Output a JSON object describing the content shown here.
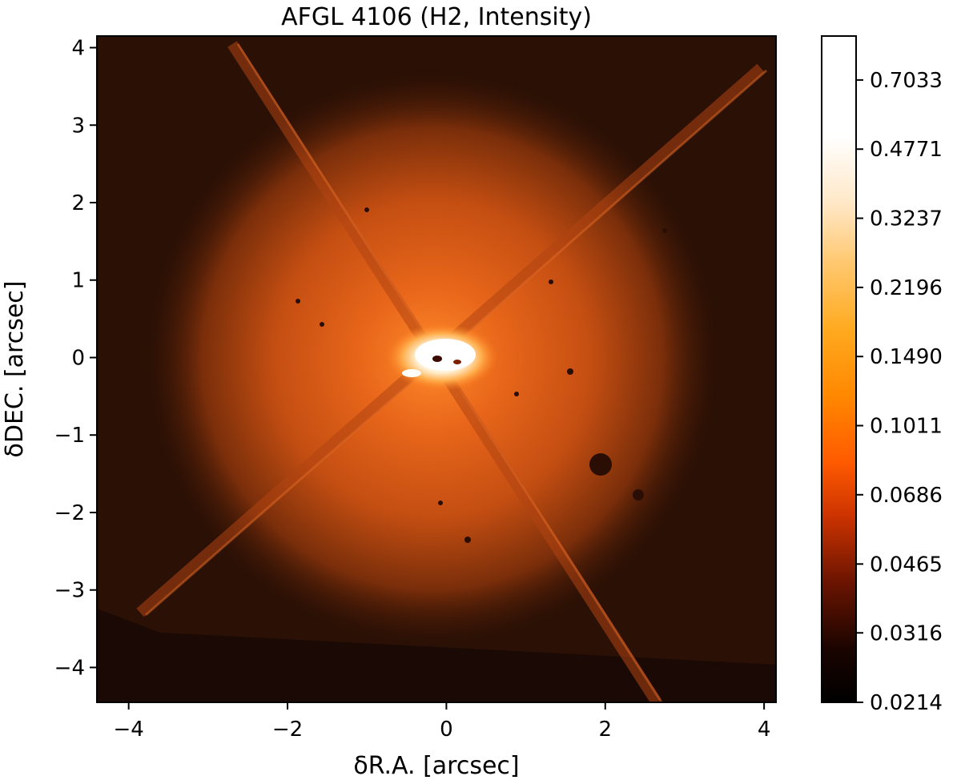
{
  "chart_data": {
    "type": "heatmap",
    "title": "AFGL 4106 (H2, Intensity)",
    "xlabel": "δR.A. [arcsec]",
    "ylabel": "δDEC. [arcsec]",
    "xlim": [
      -4.4,
      4.15
    ],
    "ylim": [
      -4.45,
      4.15
    ],
    "x_ticks": [
      {
        "value": -4,
        "label": "−4"
      },
      {
        "value": -2,
        "label": "−2"
      },
      {
        "value": 0,
        "label": "0"
      },
      {
        "value": 2,
        "label": "2"
      },
      {
        "value": 4,
        "label": "4"
      }
    ],
    "y_ticks": [
      {
        "value": 4,
        "label": "4"
      },
      {
        "value": 3,
        "label": "3"
      },
      {
        "value": 2,
        "label": "2"
      },
      {
        "value": 1,
        "label": "1"
      },
      {
        "value": 0,
        "label": "0"
      },
      {
        "value": -1,
        "label": "−1"
      },
      {
        "value": -2,
        "label": "−2"
      },
      {
        "value": -3,
        "label": "−3"
      },
      {
        "value": -4,
        "label": "−4"
      }
    ],
    "colorbar": {
      "colormap": "gist_heat",
      "scale": "log",
      "range": [
        0.0214,
        0.9
      ],
      "ticks": [
        "0.7033",
        "0.4771",
        "0.3237",
        "0.2196",
        "0.1490",
        "0.1011",
        "0.0686",
        "0.0465",
        "0.0316",
        "0.0214"
      ]
    },
    "features": {
      "central_peak": {
        "x": -0.1,
        "y": 0.0
      },
      "diffraction_spikes_deg": [
        45,
        135
      ],
      "halo_radius_arcsec": 3.8
    },
    "grid": false
  },
  "colors": {
    "background": "#1a0a03",
    "halo": "#c8530f",
    "core": "#ffffff",
    "axis": "#000000"
  }
}
